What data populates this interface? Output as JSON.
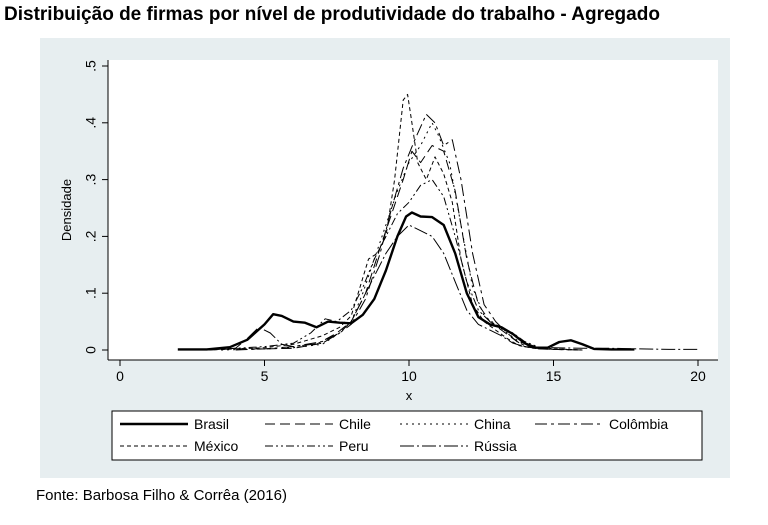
{
  "header": {
    "title": "Distribuição de firmas por nível de produtividade do trabalho - Agregado"
  },
  "footer": {
    "source": "Fonte: Barbosa Filho & Corrêa (2016)"
  },
  "chart_data": {
    "type": "line",
    "title": "",
    "xlabel": "x",
    "ylabel": "Densidade",
    "xlim": [
      0,
      20
    ],
    "ylim": [
      0,
      0.5
    ],
    "x_ticks": [
      0,
      5,
      10,
      15,
      20
    ],
    "x_tick_labels": [
      "0",
      "5",
      "10",
      "15",
      "20"
    ],
    "y_ticks": [
      0,
      0.1,
      0.2,
      0.3,
      0.4,
      0.5
    ],
    "y_tick_labels": [
      "0",
      ".1",
      ".2",
      ".3",
      ".4",
      ".5"
    ],
    "grid": false,
    "legend_position": "bottom",
    "series": [
      {
        "name": "Brasil",
        "dash": "solid",
        "width": 2.4,
        "points": [
          [
            2,
            0.001
          ],
          [
            3,
            0.001
          ],
          [
            3.8,
            0.005
          ],
          [
            4.4,
            0.018
          ],
          [
            5,
            0.045
          ],
          [
            5.3,
            0.063
          ],
          [
            5.6,
            0.06
          ],
          [
            6,
            0.05
          ],
          [
            6.4,
            0.048
          ],
          [
            6.8,
            0.04
          ],
          [
            7.2,
            0.05
          ],
          [
            7.6,
            0.048
          ],
          [
            8,
            0.047
          ],
          [
            8.4,
            0.062
          ],
          [
            8.8,
            0.09
          ],
          [
            9.2,
            0.14
          ],
          [
            9.6,
            0.2
          ],
          [
            9.9,
            0.235
          ],
          [
            10.1,
            0.242
          ],
          [
            10.4,
            0.235
          ],
          [
            10.8,
            0.234
          ],
          [
            11.2,
            0.22
          ],
          [
            11.6,
            0.17
          ],
          [
            12,
            0.1
          ],
          [
            12.4,
            0.058
          ],
          [
            12.8,
            0.045
          ],
          [
            13.2,
            0.04
          ],
          [
            13.6,
            0.028
          ],
          [
            14,
            0.012
          ],
          [
            14.4,
            0.004
          ],
          [
            14.8,
            0.004
          ],
          [
            15.2,
            0.014
          ],
          [
            15.6,
            0.017
          ],
          [
            16,
            0.01
          ],
          [
            16.4,
            0.002
          ],
          [
            17,
            0.001
          ],
          [
            17.8,
            0.001
          ]
        ]
      },
      {
        "name": "Chile",
        "dash": "10,5",
        "width": 1,
        "points": [
          [
            3,
            0
          ],
          [
            4,
            0.002
          ],
          [
            5,
            0.002
          ],
          [
            6,
            0.003
          ],
          [
            6.8,
            0.01
          ],
          [
            7.5,
            0.03
          ],
          [
            8,
            0.05
          ],
          [
            8.5,
            0.1
          ],
          [
            9,
            0.18
          ],
          [
            9.4,
            0.24
          ],
          [
            9.8,
            0.3
          ],
          [
            10.1,
            0.35
          ],
          [
            10.4,
            0.33
          ],
          [
            10.8,
            0.36
          ],
          [
            11.2,
            0.35
          ],
          [
            11.6,
            0.28
          ],
          [
            12,
            0.16
          ],
          [
            12.4,
            0.08
          ],
          [
            12.8,
            0.05
          ],
          [
            13.2,
            0.035
          ],
          [
            13.6,
            0.02
          ],
          [
            14,
            0.006
          ],
          [
            14.5,
            0.002
          ],
          [
            15,
            0.001
          ],
          [
            16,
            0
          ]
        ]
      },
      {
        "name": "China",
        "dash": "2,4",
        "width": 1,
        "points": [
          [
            3.5,
            0
          ],
          [
            5,
            0.002
          ],
          [
            6,
            0.004
          ],
          [
            7,
            0.01
          ],
          [
            7.6,
            0.03
          ],
          [
            8,
            0.05
          ],
          [
            8.4,
            0.1
          ],
          [
            8.8,
            0.16
          ],
          [
            9.2,
            0.22
          ],
          [
            9.6,
            0.28
          ],
          [
            10,
            0.33
          ],
          [
            10.4,
            0.36
          ],
          [
            10.8,
            0.4
          ],
          [
            11,
            0.38
          ],
          [
            11.4,
            0.33
          ],
          [
            11.8,
            0.22
          ],
          [
            12.2,
            0.11
          ],
          [
            12.6,
            0.06
          ],
          [
            13,
            0.045
          ],
          [
            13.4,
            0.03
          ],
          [
            13.8,
            0.015
          ],
          [
            14.2,
            0.006
          ],
          [
            15,
            0.002
          ],
          [
            16,
            0
          ]
        ]
      },
      {
        "name": "Colômbia",
        "dash": "12,4,3,4",
        "width": 1,
        "points": [
          [
            4,
            0
          ],
          [
            5,
            0.002
          ],
          [
            6,
            0.006
          ],
          [
            7,
            0.015
          ],
          [
            7.6,
            0.03
          ],
          [
            8,
            0.045
          ],
          [
            8.5,
            0.09
          ],
          [
            9,
            0.17
          ],
          [
            9.4,
            0.25
          ],
          [
            9.8,
            0.32
          ],
          [
            10.2,
            0.37
          ],
          [
            10.6,
            0.415
          ],
          [
            10.9,
            0.4
          ],
          [
            11.2,
            0.36
          ],
          [
            11.5,
            0.37
          ],
          [
            11.8,
            0.3
          ],
          [
            12.2,
            0.17
          ],
          [
            12.6,
            0.08
          ],
          [
            13,
            0.05
          ],
          [
            13.4,
            0.03
          ],
          [
            13.8,
            0.012
          ],
          [
            14.3,
            0.004
          ],
          [
            15,
            0.001
          ],
          [
            16,
            0
          ]
        ]
      },
      {
        "name": "México",
        "dash": "4,3",
        "width": 1,
        "points": [
          [
            3,
            0
          ],
          [
            4,
            0.002
          ],
          [
            5,
            0.004
          ],
          [
            6,
            0.01
          ],
          [
            7,
            0.025
          ],
          [
            7.6,
            0.04
          ],
          [
            8,
            0.06
          ],
          [
            8.3,
            0.11
          ],
          [
            8.6,
            0.16
          ],
          [
            8.9,
            0.17
          ],
          [
            9.2,
            0.2
          ],
          [
            9.5,
            0.3
          ],
          [
            9.8,
            0.44
          ],
          [
            9.95,
            0.45
          ],
          [
            10.1,
            0.4
          ],
          [
            10.3,
            0.33
          ],
          [
            10.6,
            0.3
          ],
          [
            10.9,
            0.34
          ],
          [
            11.2,
            0.31
          ],
          [
            11.5,
            0.26
          ],
          [
            11.8,
            0.16
          ],
          [
            12.2,
            0.08
          ],
          [
            12.6,
            0.05
          ],
          [
            13,
            0.035
          ],
          [
            13.4,
            0.02
          ],
          [
            13.8,
            0.008
          ],
          [
            14.3,
            0.003
          ],
          [
            15,
            0.001
          ],
          [
            16,
            0
          ]
        ]
      },
      {
        "name": "Peru",
        "dash": "8,3,2,3,2,3",
        "width": 1,
        "points": [
          [
            3,
            0
          ],
          [
            4,
            0.003
          ],
          [
            5,
            0.006
          ],
          [
            6,
            0.012
          ],
          [
            6.6,
            0.03
          ],
          [
            7.1,
            0.055
          ],
          [
            7.5,
            0.05
          ],
          [
            8,
            0.07
          ],
          [
            8.4,
            0.11
          ],
          [
            8.8,
            0.16
          ],
          [
            9.2,
            0.2
          ],
          [
            9.6,
            0.24
          ],
          [
            10,
            0.26
          ],
          [
            10.4,
            0.29
          ],
          [
            10.8,
            0.3
          ],
          [
            11.2,
            0.27
          ],
          [
            11.6,
            0.2
          ],
          [
            12,
            0.12
          ],
          [
            12.4,
            0.07
          ],
          [
            12.8,
            0.05
          ],
          [
            13.2,
            0.04
          ],
          [
            13.6,
            0.03
          ],
          [
            14,
            0.015
          ],
          [
            14.5,
            0.005
          ],
          [
            15,
            0.002
          ],
          [
            16,
            0
          ]
        ]
      },
      {
        "name": "Rússia",
        "dash": "14,3,2,3",
        "width": 1,
        "points": [
          [
            3,
            0
          ],
          [
            4,
            0.003
          ],
          [
            4.4,
            0.02
          ],
          [
            4.8,
            0.04
          ],
          [
            5.2,
            0.03
          ],
          [
            5.6,
            0.01
          ],
          [
            6,
            0.006
          ],
          [
            7,
            0.012
          ],
          [
            7.6,
            0.03
          ],
          [
            8,
            0.05
          ],
          [
            8.4,
            0.09
          ],
          [
            8.8,
            0.13
          ],
          [
            9.2,
            0.17
          ],
          [
            9.6,
            0.2
          ],
          [
            10,
            0.22
          ],
          [
            10.4,
            0.21
          ],
          [
            10.8,
            0.2
          ],
          [
            11.2,
            0.17
          ],
          [
            11.6,
            0.12
          ],
          [
            12,
            0.07
          ],
          [
            12.4,
            0.045
          ],
          [
            12.8,
            0.035
          ],
          [
            13.2,
            0.025
          ],
          [
            13.6,
            0.012
          ],
          [
            14,
            0.006
          ],
          [
            15,
            0.004
          ],
          [
            16,
            0.003
          ],
          [
            17,
            0.003
          ],
          [
            18,
            0.002
          ],
          [
            19,
            0.001
          ],
          [
            20,
            0.001
          ]
        ]
      }
    ]
  }
}
